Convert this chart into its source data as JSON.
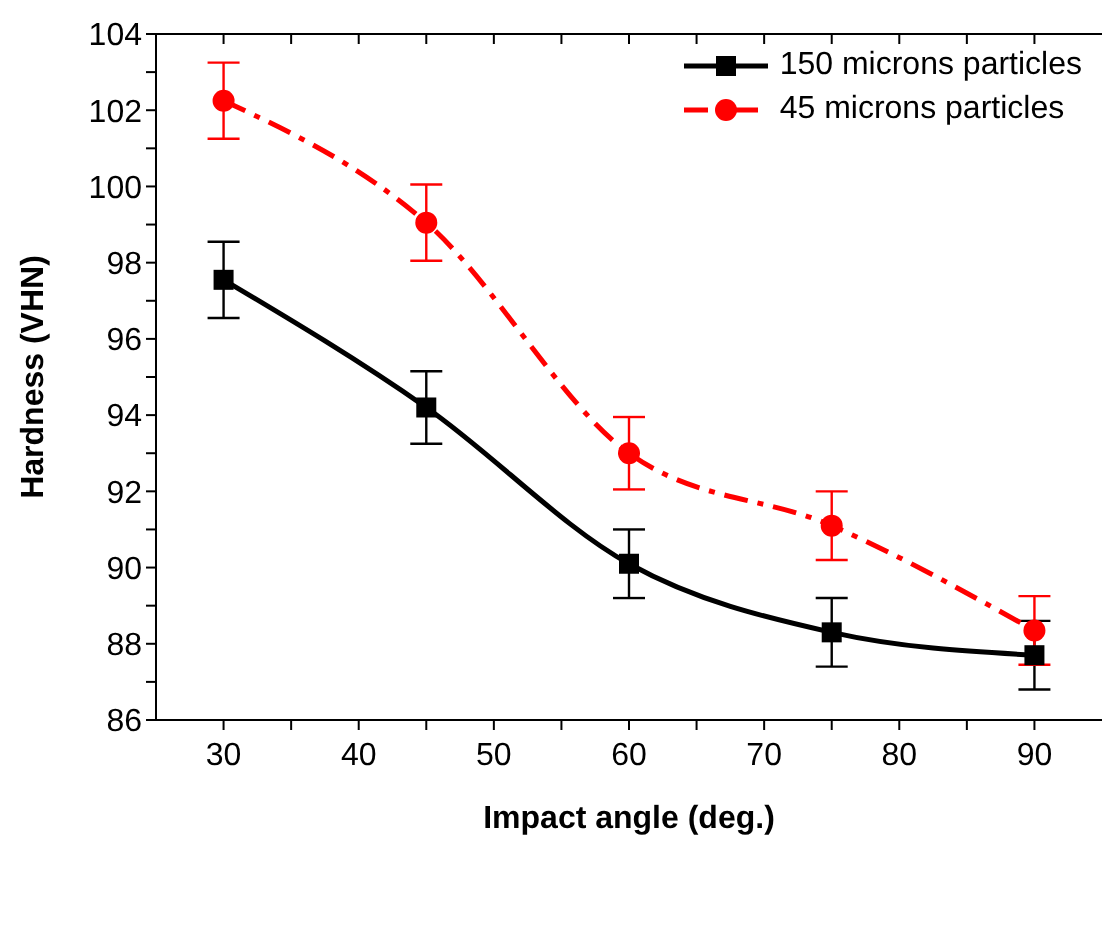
{
  "chart_data": {
    "type": "line",
    "xlabel": "Impact angle (deg.)",
    "ylabel": "Hardness (VHN)",
    "x": [
      30,
      45,
      60,
      75,
      90
    ],
    "series": [
      {
        "name": "150 microns particles",
        "color": "#000000",
        "marker": "square",
        "line_style": "solid",
        "values": [
          97.55,
          94.2,
          90.1,
          88.3,
          87.7
        ],
        "errors": [
          1,
          0.95,
          0.9,
          0.9,
          0.9
        ]
      },
      {
        "name": "45 microns particles",
        "color": "#ff0000",
        "marker": "circle",
        "line_style": "dashed",
        "values": [
          102.25,
          99.05,
          93.0,
          91.1,
          88.35
        ],
        "errors": [
          1,
          1,
          0.95,
          0.9,
          0.9
        ]
      }
    ],
    "xlim": [
      25,
      95
    ],
    "xticks": [
      30,
      {
        "value": 35,
        "label": null
      },
      40,
      {
        "value": 45,
        "label": null
      },
      50,
      {
        "value": 55,
        "label": null
      },
      60,
      {
        "value": 65,
        "label": null
      },
      70,
      {
        "value": 75,
        "label": null
      },
      80,
      {
        "value": 85,
        "label": null
      },
      90
    ],
    "ylim": [
      86,
      104
    ],
    "yticks": [
      86,
      {
        "value": 87,
        "label": null
      },
      88,
      {
        "value": 89,
        "label": null
      },
      90,
      {
        "value": 91,
        "label": null
      },
      92,
      {
        "value": 93,
        "label": null
      },
      94,
      {
        "value": 95,
        "label": null
      },
      96,
      {
        "value": 97,
        "label": null
      },
      98,
      {
        "value": 99,
        "label": null
      },
      100,
      {
        "value": 101,
        "label": null
      },
      102,
      {
        "value": 103,
        "label": null
      },
      104
    ],
    "grid": false,
    "legend": "top right"
  }
}
